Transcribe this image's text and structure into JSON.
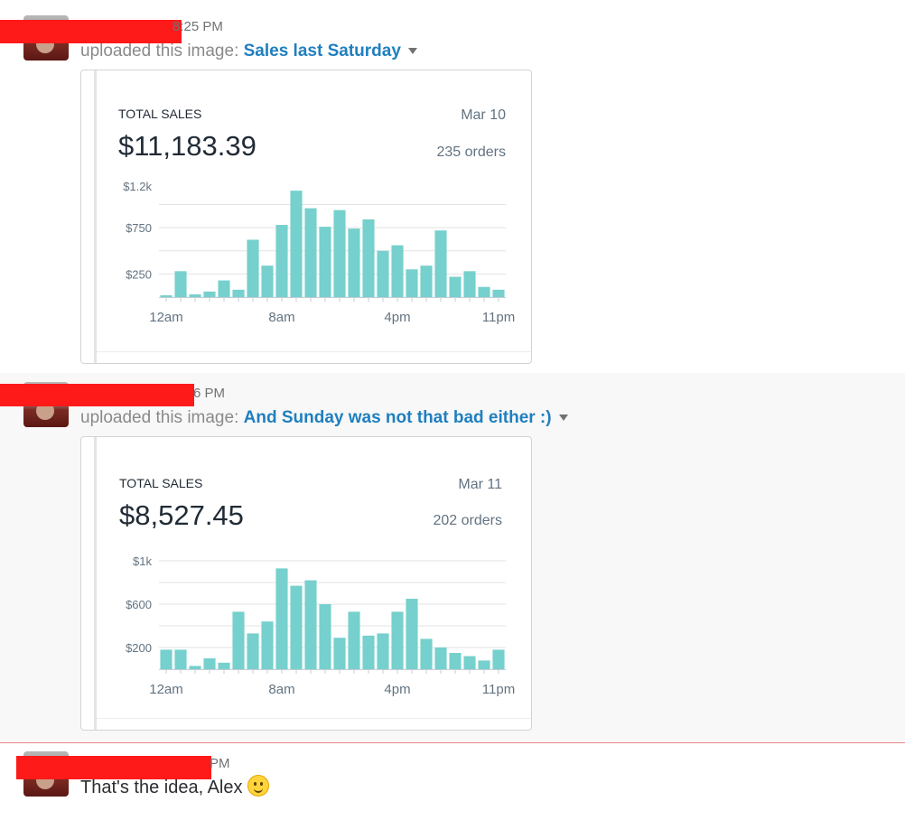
{
  "messages": [
    {
      "timestamp_fragment": "8:25 PM",
      "upload_prefix": "uploaded this image: ",
      "image_title": "Sales last Saturday",
      "card": {
        "label": "TOTAL SALES",
        "total": "$11,183.39",
        "date": "Mar 10",
        "orders": "235 orders"
      }
    },
    {
      "timestamp_fragment": "6 PM",
      "upload_prefix": "uploaded this image: ",
      "image_title": "And Sunday was not that bad either :)",
      "card": {
        "label": "TOTAL SALES",
        "total": "$8,527.45",
        "date": "Mar 11",
        "orders": "202 orders"
      }
    },
    {
      "timestamp_fragment": "PM",
      "text": "That's the idea, Alex",
      "emoji": "slightly-smiling-face"
    }
  ],
  "colors": {
    "bar": "#76d0cd",
    "link": "#1f7fbf",
    "redaction": "#ff1a1a",
    "new_message_divider": "#e8868a"
  },
  "chart_data": [
    {
      "type": "bar",
      "title": "TOTAL SALES",
      "categories": [
        "12am",
        "1am",
        "2am",
        "3am",
        "4am",
        "5am",
        "6am",
        "7am",
        "8am",
        "9am",
        "10am",
        "11am",
        "12pm",
        "1pm",
        "2pm",
        "3pm",
        "4pm",
        "5pm",
        "6pm",
        "7pm",
        "8pm",
        "9pm",
        "10pm",
        "11pm"
      ],
      "series": [
        {
          "values": [
            20,
            280,
            30,
            60,
            180,
            80,
            620,
            340,
            780,
            1150,
            960,
            760,
            940,
            740,
            840,
            500,
            560,
            300,
            340,
            720,
            220,
            280,
            110,
            80
          ]
        }
      ],
      "yticks": [
        "$1.2k",
        "$750",
        "$250"
      ],
      "ytick_values": [
        1200,
        750,
        250
      ],
      "xticks": [
        "12am",
        "8am",
        "4pm",
        "11pm"
      ],
      "ylim": [
        0,
        1200
      ],
      "grid": true
    },
    {
      "type": "bar",
      "title": "TOTAL SALES",
      "categories": [
        "12am",
        "1am",
        "2am",
        "3am",
        "4am",
        "5am",
        "6am",
        "7am",
        "8am",
        "9am",
        "10am",
        "11am",
        "12pm",
        "1pm",
        "2pm",
        "3pm",
        "4pm",
        "5pm",
        "6pm",
        "7pm",
        "8pm",
        "9pm",
        "10pm",
        "11pm"
      ],
      "series": [
        {
          "values": [
            180,
            180,
            30,
            100,
            60,
            530,
            330,
            440,
            930,
            770,
            820,
            600,
            290,
            530,
            310,
            330,
            530,
            650,
            280,
            200,
            150,
            120,
            80,
            180
          ]
        }
      ],
      "yticks": [
        "$1k",
        "$600",
        "$200"
      ],
      "ytick_values": [
        1000,
        600,
        200
      ],
      "xticks": [
        "12am",
        "8am",
        "4pm",
        "11pm"
      ],
      "ylim": [
        0,
        1000
      ],
      "grid": true
    }
  ]
}
